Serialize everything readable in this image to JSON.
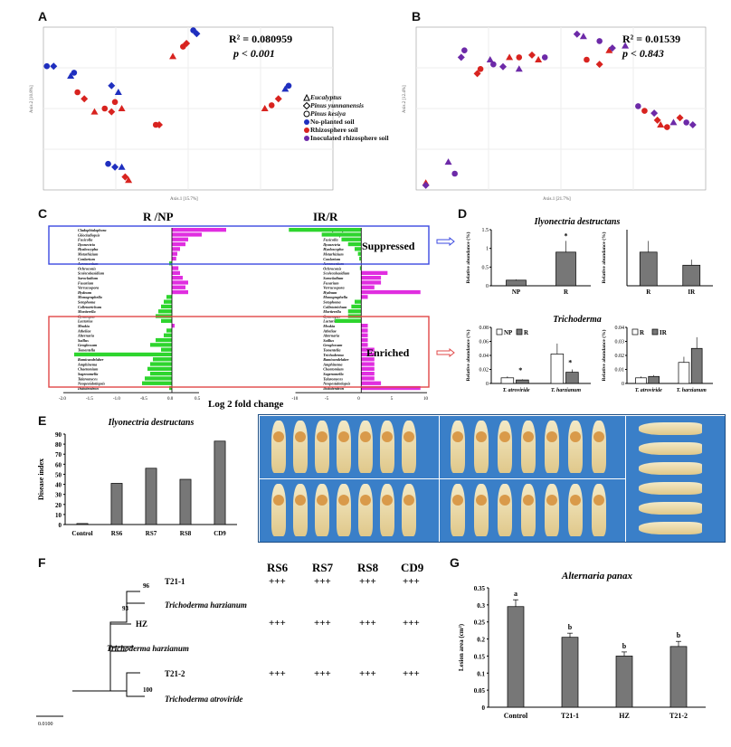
{
  "panel_labels": {
    "A": "A",
    "B": "B",
    "C": "C",
    "D": "D",
    "E": "E",
    "F": "F",
    "G": "G"
  },
  "panelA": {
    "stat_r2": "R² = 0.080959",
    "stat_p": "p < 0.001",
    "xlabel": "Axis.1 [15.7%]",
    "ylabel": "Axis.2 [10.8%]",
    "xticks": [
      "-0.2",
      "0.0",
      "0.2",
      "0.4"
    ],
    "yticks": [
      "0.2",
      "0.0",
      "-0.2"
    ],
    "legend": [
      {
        "shape": "triangle",
        "label": "Eucalyptus",
        "italic": true
      },
      {
        "shape": "diamond",
        "label": "Pinus yunnanensis",
        "italic": true
      },
      {
        "shape": "circle",
        "label": "Pinus kesiya",
        "italic": true
      },
      {
        "shape": "dot",
        "color": "#1f2fbf",
        "label": "No-planted soil",
        "italic": false
      },
      {
        "shape": "dot",
        "color": "#d8231f",
        "label": "Rhizosphere soil",
        "italic": false
      },
      {
        "shape": "dot",
        "color": "#6d2aa8",
        "label": "Inoculated rhizosphere soil",
        "italic": false
      }
    ]
  },
  "panelB": {
    "stat_r2": "R² = 0.01539",
    "stat_p": "p < 0.843",
    "xlabel": "Axis.1 [21.7%]",
    "ylabel": "Axis.2 [12.4%]"
  },
  "panelC": {
    "title_left": "R /NP",
    "title_right": "IR/R",
    "box_top": "Suppressed",
    "box_bottom": "Enriched",
    "xaxis_title": "Log 2 fold change",
    "xticks_left": [
      "-2.0",
      "-1.5",
      "-1.0",
      "-0.5",
      "0.0",
      "0.5"
    ],
    "xticks_right": [
      "-10",
      "-5",
      "0",
      "5",
      "10"
    ],
    "genera": [
      "Cladophialophora",
      "Gliocladiopsis",
      "Fusicolla",
      "Ilyonectria",
      "Hyaloscypha",
      "Metarhizium",
      "Conlarium",
      "Acremonium",
      "Ochroconis",
      "Scolecobasidium",
      "Sarocladium",
      "Fusarium",
      "Verrucospora",
      "Hydnum",
      "Monographella",
      "Setophoma",
      "Colletotrichum",
      "Mortierella",
      "Gymnopus",
      "Lactarius",
      "Mrakia",
      "Atheliae",
      "Alternaria",
      "Saillus",
      "Geoglossum",
      "Tomentella",
      "Trichoderma",
      "Ramicandelaber",
      "Amphinema",
      "Chaetomium",
      "Sagenomella",
      "Talaromyces",
      "Neopestalotiopsis",
      "Didodendron"
    ]
  },
  "chart_data": [
    {
      "type": "scatter",
      "id": "A",
      "xlim": [
        -0.3,
        0.55
      ],
      "ylim": [
        -0.25,
        0.25
      ],
      "series": [
        {
          "color": "#1f2fbf",
          "points": [
            [
              -0.29,
              0.13
            ],
            [
              -0.27,
              0.13
            ],
            [
              -0.22,
              0.1
            ],
            [
              -0.21,
              0.11
            ],
            [
              -0.1,
              0.07
            ],
            [
              -0.08,
              0.05
            ],
            [
              -0.11,
              -0.17
            ],
            [
              -0.09,
              -0.18
            ],
            [
              -0.07,
              -0.18
            ],
            [
              0.14,
              0.24
            ],
            [
              0.15,
              0.23
            ],
            [
              0.41,
              0.06
            ],
            [
              0.42,
              0.07
            ]
          ]
        },
        {
          "color": "#d8231f",
          "points": [
            [
              -0.2,
              0.05
            ],
            [
              -0.18,
              0.03
            ],
            [
              -0.15,
              -0.01
            ],
            [
              -0.12,
              0.0
            ],
            [
              -0.1,
              -0.01
            ],
            [
              -0.07,
              0.0
            ],
            [
              -0.09,
              0.02
            ],
            [
              -0.06,
              -0.21
            ],
            [
              -0.05,
              -0.22
            ],
            [
              0.03,
              -0.05
            ],
            [
              0.04,
              -0.05
            ],
            [
              0.08,
              0.16
            ],
            [
              0.11,
              0.19
            ],
            [
              0.12,
              0.2
            ],
            [
              0.35,
              0.0
            ],
            [
              0.37,
              0.01
            ],
            [
              0.39,
              0.03
            ]
          ]
        }
      ]
    },
    {
      "type": "scatter",
      "id": "B",
      "xlim": [
        -0.45,
        0.45
      ],
      "ylim": [
        -0.4,
        0.3
      ],
      "series": [
        {
          "color": "#d8231f",
          "points": [
            [
              -0.25,
              0.12
            ],
            [
              -0.26,
              0.1
            ],
            [
              -0.16,
              0.17
            ],
            [
              -0.13,
              0.17
            ],
            [
              -0.09,
              0.18
            ],
            [
              -0.07,
              0.16
            ],
            [
              0.08,
              0.16
            ],
            [
              0.12,
              0.14
            ],
            [
              0.15,
              0.2
            ],
            [
              0.26,
              -0.06
            ],
            [
              0.3,
              -0.1
            ],
            [
              0.31,
              -0.12
            ],
            [
              0.33,
              -0.13
            ],
            [
              0.37,
              -0.09
            ],
            [
              -0.42,
              -0.37
            ]
          ]
        },
        {
          "color": "#6d2aa8",
          "points": [
            [
              -0.3,
              0.2
            ],
            [
              -0.31,
              0.17
            ],
            [
              -0.22,
              0.16
            ],
            [
              -0.21,
              0.14
            ],
            [
              -0.18,
              0.13
            ],
            [
              -0.13,
              0.12
            ],
            [
              -0.05,
              0.17
            ],
            [
              0.05,
              0.27
            ],
            [
              0.07,
              0.26
            ],
            [
              0.12,
              0.24
            ],
            [
              0.16,
              0.21
            ],
            [
              0.2,
              0.22
            ],
            [
              0.24,
              -0.04
            ],
            [
              0.29,
              -0.07
            ],
            [
              0.35,
              -0.11
            ],
            [
              0.39,
              -0.11
            ],
            [
              0.41,
              -0.12
            ],
            [
              -0.35,
              -0.28
            ],
            [
              -0.33,
              -0.33
            ],
            [
              -0.42,
              -0.38
            ]
          ]
        }
      ]
    },
    {
      "type": "bar",
      "id": "C-left",
      "xlabel": "Log 2 fold change",
      "values": [
        1.0,
        0.55,
        0.3,
        0.25,
        0.15,
        0.1,
        0.08,
        -0.05,
        0.12,
        0.15,
        0.2,
        0.3,
        0.25,
        0.3,
        -0.1,
        -0.15,
        -0.2,
        -0.25,
        -0.3,
        -0.2,
        0.05,
        -0.1,
        -0.15,
        -0.3,
        -0.4,
        -0.2,
        -1.8,
        -0.35,
        -0.4,
        -0.45,
        -0.4,
        -0.5,
        -0.55,
        -0.05
      ]
    },
    {
      "type": "bar",
      "id": "C-right",
      "xlabel": "Log 2 fold change",
      "values": [
        -11,
        -6,
        -3,
        -2,
        -1,
        -0.5,
        -0.3,
        0,
        -0.2,
        4,
        3,
        3,
        2,
        9,
        1,
        -1,
        -1.5,
        -2,
        -2,
        -4,
        1,
        1,
        1,
        1,
        1,
        2,
        2,
        2,
        2,
        2,
        2,
        2,
        3,
        9
      ]
    },
    {
      "type": "bar",
      "id": "D-ilyo-1",
      "title": "Ilyonectria destructans",
      "ylabel": "Relative abundance (%)",
      "categories": [
        "NP",
        "R"
      ],
      "values": [
        0.15,
        0.9
      ],
      "errors": [
        0.02,
        0.3
      ],
      "sig": [
        "",
        "*"
      ],
      "ylim": [
        0,
        1.5
      ],
      "yticks": [
        "0",
        "0.5",
        "1",
        "1.5"
      ]
    },
    {
      "type": "bar",
      "id": "D-ilyo-2",
      "ylabel": "Relative abundance (%)",
      "categories": [
        "R",
        "IR"
      ],
      "values": [
        0.9,
        0.55
      ],
      "errors": [
        0.3,
        0.15
      ],
      "ylim": [
        0,
        1.5
      ]
    },
    {
      "type": "bar",
      "id": "D-tricho-1",
      "title": "Trichoderma",
      "ylabel": "Relative abundance (%)",
      "categories": [
        "T. atroviride",
        "T. harzianum"
      ],
      "series": [
        {
          "name": "NP",
          "values": [
            0.008,
            0.042
          ]
        },
        {
          "name": "R",
          "values": [
            0.005,
            0.016
          ]
        }
      ],
      "errors": [
        [
          0.002,
          0.015
        ],
        [
          0.001,
          0.004
        ]
      ],
      "sig": [
        "*",
        "*"
      ],
      "ylim": [
        0,
        0.08
      ],
      "yticks": [
        "0",
        "0.02",
        "0.04",
        "0.06",
        "0.08"
      ]
    },
    {
      "type": "bar",
      "id": "D-tricho-2",
      "ylabel": "Relative abundance (%)",
      "categories": [
        "T. atroviride",
        "T. harzianum"
      ],
      "series": [
        {
          "name": "R",
          "values": [
            0.004,
            0.015
          ]
        },
        {
          "name": "IR",
          "values": [
            0.005,
            0.025
          ]
        }
      ],
      "errors": [
        [
          0.001,
          0.004
        ],
        [
          0.001,
          0.008
        ]
      ],
      "ylim": [
        0,
        0.04
      ],
      "yticks": [
        "0",
        "0.01",
        "0.02",
        "0.03",
        "0.04"
      ]
    },
    {
      "type": "bar",
      "id": "E",
      "title": "Ilyonectria destructans",
      "ylabel": "Disease index",
      "categories": [
        "Control",
        "RS6",
        "RS7",
        "RS8",
        "CD9"
      ],
      "values": [
        1,
        41,
        56,
        45,
        83
      ],
      "ylim": [
        0,
        90
      ],
      "yticks": [
        "0",
        "10",
        "20",
        "30",
        "40",
        "50",
        "60",
        "70",
        "80",
        "90"
      ]
    },
    {
      "type": "bar",
      "id": "G",
      "title": "Alternaria panax",
      "ylabel": "Lesion area (cm²)",
      "categories": [
        "Control",
        "T21-1",
        "HZ",
        "T21-2"
      ],
      "values": [
        0.295,
        0.205,
        0.15,
        0.178
      ],
      "errors": [
        0.02,
        0.012,
        0.012,
        0.015
      ],
      "sig": [
        "a",
        "b",
        "b",
        "b"
      ],
      "ylim": [
        0,
        0.35
      ],
      "yticks": [
        "0",
        "0.05",
        "0.1",
        "0.15",
        "0.2",
        "0.25",
        "0.3",
        "0.35"
      ]
    }
  ],
  "panelF": {
    "headers": [
      "RS6",
      "RS7",
      "RS8",
      "CD9"
    ],
    "plus": "+++",
    "nodes": [
      {
        "label": "T21-1",
        "plain": true
      },
      {
        "label": "Trichoderma harzianum",
        "plain": false
      },
      {
        "label": "HZ",
        "plain": true
      },
      {
        "label": "Trichoderma harzianum",
        "plain": false
      },
      {
        "label": "T21-2",
        "plain": true
      },
      {
        "label": "Trichoderma atroviride",
        "plain": false
      }
    ],
    "bootstrap": [
      "96",
      "93",
      "100"
    ],
    "scale": "0.0100"
  }
}
